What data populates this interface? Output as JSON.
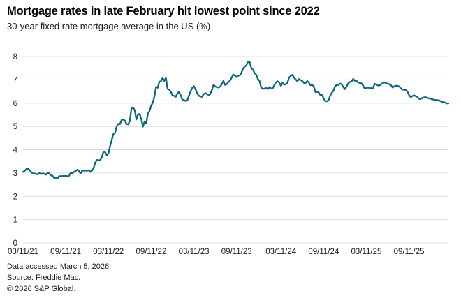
{
  "header": {
    "title": "Mortgage rates in late February hit lowest point since 2022",
    "subtitle": "30-year fixed rate mortgage average in the US (%)"
  },
  "chart_data": {
    "type": "line",
    "title": "Mortgage rates in late February hit lowest point since 2022",
    "subtitle": "30-year fixed rate mortgage average in the US (%)",
    "xlabel": "",
    "ylabel": "30-year fixed rate mortgage average in the US (%)",
    "ylim": [
      0,
      8
    ],
    "y_ticks": [
      0,
      1,
      2,
      3,
      4,
      5,
      6,
      7,
      8
    ],
    "grid": true,
    "legend_position": "none",
    "line_color": "#0d6580",
    "grid_color": "#dddddd",
    "tick_label_color": "#1a1a1a",
    "x_ticks": [
      {
        "label": "03/11/21",
        "index": 0
      },
      {
        "label": "09/11/21",
        "index": 26
      },
      {
        "label": "03/11/22",
        "index": 52
      },
      {
        "label": "09/11/22",
        "index": 78
      },
      {
        "label": "03/11/23",
        "index": 104
      },
      {
        "label": "09/11/23",
        "index": 130
      },
      {
        "label": "03/11/24",
        "index": 157
      },
      {
        "label": "09/11/24",
        "index": 183
      },
      {
        "label": "03/11/25",
        "index": 209
      },
      {
        "label": "09/11/25",
        "index": 235
      }
    ],
    "series": [
      {
        "name": "30-year fixed rate mortgage average in the US (%)",
        "frequency": "weekly",
        "start_date": "03/11/21",
        "end_date": "02/26/26",
        "values": [
          3.05,
          3.09,
          3.17,
          3.18,
          3.13,
          3.04,
          2.97,
          2.98,
          2.96,
          2.94,
          3.0,
          2.95,
          2.99,
          2.96,
          2.93,
          3.02,
          2.98,
          2.9,
          2.88,
          2.78,
          2.8,
          2.77,
          2.87,
          2.86,
          2.87,
          2.87,
          2.88,
          2.86,
          2.88,
          3.01,
          2.99,
          3.05,
          3.09,
          3.14,
          3.09,
          2.98,
          3.1,
          3.1,
          3.11,
          3.1,
          3.12,
          3.05,
          3.11,
          3.22,
          3.45,
          3.56,
          3.55,
          3.55,
          3.69,
          3.92,
          3.89,
          3.76,
          3.85,
          4.16,
          4.42,
          4.67,
          4.72,
          5.0,
          5.11,
          5.1,
          5.27,
          5.3,
          5.25,
          5.1,
          5.09,
          5.23,
          5.78,
          5.81,
          5.7,
          5.3,
          5.51,
          5.54,
          5.3,
          4.99,
          5.22,
          5.13,
          5.55,
          5.66,
          5.89,
          6.02,
          6.29,
          6.7,
          6.66,
          6.92,
          6.94,
          7.08,
          6.95,
          7.08,
          6.61,
          6.58,
          6.49,
          6.33,
          6.31,
          6.27,
          6.42,
          6.48,
          6.33,
          6.15,
          6.13,
          6.09,
          6.12,
          6.32,
          6.5,
          6.65,
          6.73,
          6.6,
          6.42,
          6.32,
          6.28,
          6.27,
          6.39,
          6.43,
          6.39,
          6.35,
          6.39,
          6.57,
          6.79,
          6.71,
          6.69,
          6.67,
          6.71,
          6.81,
          6.96,
          6.78,
          6.81,
          6.9,
          6.96,
          7.09,
          7.23,
          7.18,
          7.12,
          7.18,
          7.19,
          7.31,
          7.49,
          7.57,
          7.63,
          7.79,
          7.76,
          7.5,
          7.44,
          7.29,
          7.22,
          7.03,
          6.95,
          6.67,
          6.61,
          6.62,
          6.66,
          6.6,
          6.69,
          6.63,
          6.64,
          6.77,
          6.9,
          6.94,
          6.88,
          6.74,
          6.87,
          6.79,
          6.82,
          6.88,
          7.1,
          7.17,
          7.22,
          7.09,
          7.02,
          6.94,
          7.03,
          6.99,
          6.95,
          6.87,
          6.86,
          6.95,
          6.89,
          6.77,
          6.78,
          6.73,
          6.47,
          6.49,
          6.46,
          6.35,
          6.35,
          6.2,
          6.09,
          6.08,
          6.12,
          6.32,
          6.44,
          6.54,
          6.72,
          6.79,
          6.78,
          6.84,
          6.81,
          6.69,
          6.6,
          6.72,
          6.85,
          6.91,
          6.93,
          7.04,
          6.96,
          6.95,
          6.89,
          6.87,
          6.85,
          6.76,
          6.63,
          6.65,
          6.67,
          6.65,
          6.64,
          6.62,
          6.83,
          6.81,
          6.76,
          6.76,
          6.81,
          6.86,
          6.89,
          6.85,
          6.84,
          6.81,
          6.77,
          6.67,
          6.72,
          6.75,
          6.74,
          6.72,
          6.63,
          6.58,
          6.58,
          6.56,
          6.5,
          6.35,
          6.26,
          6.3,
          6.34,
          6.3,
          6.27,
          6.19,
          6.17,
          6.22,
          6.24,
          6.26,
          6.23,
          6.21,
          6.19,
          6.17,
          6.15,
          6.14,
          6.12,
          6.13,
          6.09,
          6.06,
          6.04,
          6.02,
          5.99,
          5.99
        ]
      }
    ]
  },
  "footer": {
    "line1": "Data accessed March 5, 2026.",
    "line2": "Source: Freddie Mac.",
    "line3": "© 2026 S&P Global."
  }
}
